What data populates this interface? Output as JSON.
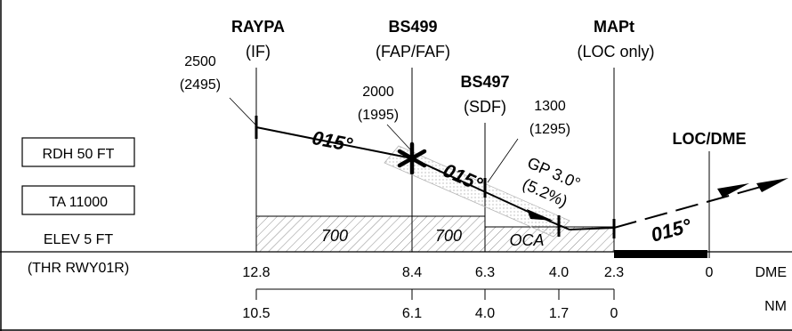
{
  "fixes": {
    "raypa": {
      "name": "RAYPA",
      "role": "(IF)"
    },
    "bs499": {
      "name": "BS499",
      "role": "(FAP/FAF)"
    },
    "bs497": {
      "name": "BS497",
      "role": "(SDF)"
    },
    "mapt": {
      "name": "MAPt",
      "role": "(LOC only)"
    },
    "locdme": {
      "name": "LOC/DME"
    }
  },
  "altitudes": {
    "raypa": {
      "alt": "2500",
      "height": "(2495)"
    },
    "bs499": {
      "alt": "2000",
      "height": "(1995)"
    },
    "bs497": {
      "alt": "1300",
      "height": "(1295)"
    }
  },
  "courses": {
    "c1": "015°",
    "c2": "015°",
    "c3": "015°"
  },
  "glidepath": {
    "angle": "GP 3.0°",
    "gradient": "(5.2%)"
  },
  "boxes": {
    "rdh": "RDH 50 FT",
    "ta": "TA 11000"
  },
  "elevation": {
    "elev": "ELEV 5 FT",
    "thr": "(THR RWY01R)"
  },
  "minimums": {
    "seg1": "700",
    "seg2": "700",
    "seg3": "OCA"
  },
  "scales": {
    "dme": {
      "label": "DME",
      "ticks": [
        "12.8",
        "8.4",
        "6.3",
        "4.0",
        "2.3",
        "0"
      ]
    },
    "nm": {
      "label": "NM",
      "ticks": [
        "10.5",
        "6.1",
        "4.0",
        "1.7",
        "0"
      ]
    }
  },
  "colors": {
    "ink": "#000000",
    "hatch": "#8c8c8c",
    "corridor": "#b4b4b4"
  }
}
